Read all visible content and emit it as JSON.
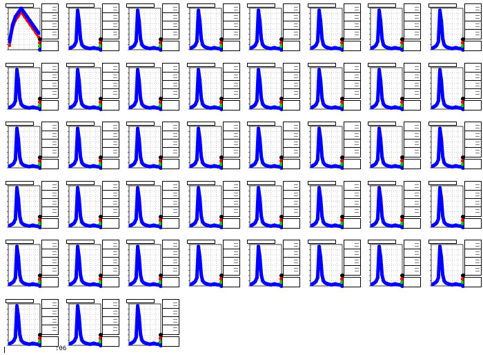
{
  "canvas": {
    "rows": 6,
    "cols": 8,
    "pad_count": 43
  },
  "footer": {
    "text": ":06"
  },
  "colors": {
    "primary_series": "#0000ff",
    "secondary_series": "#ff0000",
    "tertiary_series": "#00cc00",
    "quaternary_series": "#000000",
    "axis": "#000000",
    "grid": "#9a9a9a"
  },
  "chart_data": {
    "type": "scatter",
    "description_free": true,
    "grid": true,
    "legend_position": "right",
    "pads": 43,
    "first_pad": {
      "x": [
        0,
        1,
        2,
        3,
        4,
        5,
        6,
        7,
        8,
        9,
        10
      ],
      "series": [
        {
          "values": [
            2,
            6,
            8,
            9,
            10,
            9,
            8,
            7,
            6,
            5,
            4
          ]
        },
        {
          "values": [
            1,
            5,
            7,
            8,
            9,
            8,
            7,
            6,
            5,
            4,
            3
          ]
        }
      ],
      "xlim": [
        0,
        10
      ],
      "ylim": [
        0,
        10
      ]
    },
    "peak_pads": {
      "x": [
        0,
        1,
        2,
        3,
        4,
        5,
        6,
        7,
        8,
        9,
        10,
        11,
        12,
        13,
        14,
        15,
        16,
        17,
        18,
        19,
        20
      ],
      "series": [
        {
          "values": [
            0.4,
            0.6,
            0.8,
            1.2,
            2.0,
            9.5,
            7.0,
            2.6,
            1.2,
            0.8,
            0.6,
            0.5,
            0.4,
            0.3,
            0.3,
            0.4,
            0.5,
            0.4,
            0.3,
            0.3,
            0.2
          ]
        },
        {
          "values": [
            0.3,
            0.5,
            0.7,
            1.0,
            1.8,
            8.8,
            6.5,
            2.3,
            1.1,
            0.7,
            0.5,
            0.4,
            0.4,
            0.3,
            0.3,
            0.3,
            0.4,
            0.4,
            0.3,
            0.2,
            0.2
          ]
        }
      ],
      "xlim": [
        0,
        20
      ],
      "ylim": [
        0,
        10
      ]
    },
    "legend_markers": [
      "#000000",
      "#ff0000",
      "#00cc00",
      "#0000ff"
    ]
  }
}
